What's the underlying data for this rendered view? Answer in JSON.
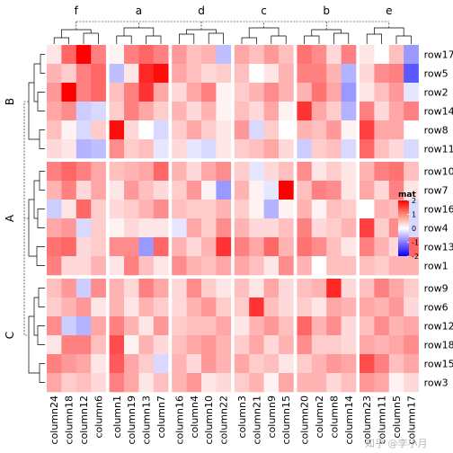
{
  "chart_data": {
    "type": "heatmap",
    "row_slices": [
      "B",
      "A",
      "C"
    ],
    "row_slice_rows": [
      [
        "row17",
        "row5",
        "row2",
        "row14",
        "row8",
        "row11"
      ],
      [
        "row10",
        "row7",
        "row16",
        "row4",
        "row13",
        "row1"
      ],
      [
        "row9",
        "row6",
        "row12",
        "row18",
        "row15",
        "row3"
      ]
    ],
    "column_slices": [
      "f",
      "a",
      "d",
      "c",
      "b",
      "e"
    ],
    "column_slice_columns": [
      [
        "column24",
        "column18",
        "column12",
        "column6"
      ],
      [
        "column1",
        "column19",
        "column13",
        "column7"
      ],
      [
        "column16",
        "column4",
        "column10",
        "column22"
      ],
      [
        "column3",
        "column21",
        "column9",
        "column15"
      ],
      [
        "column20",
        "column2",
        "column8",
        "column14"
      ],
      [
        "column23",
        "column11",
        "column5",
        "column17"
      ]
    ],
    "values": [
      [
        0.2,
        1.2,
        2.0,
        1.0,
        0.1,
        1.0,
        1.2,
        1.0,
        0.8,
        0.5,
        0.6,
        -0.5,
        0.7,
        0.5,
        0.8,
        0.5,
        1.1,
        0.9,
        0.3,
        1.0,
        0.2,
        0.0,
        0.5,
        -0.8
      ],
      [
        0.6,
        0.4,
        1.0,
        1.2,
        -0.5,
        0.2,
        1.7,
        1.9,
        0.7,
        0.5,
        0.3,
        0.4,
        0.5,
        0.0,
        0.2,
        0.6,
        1.0,
        1.0,
        0.6,
        -0.6,
        0.3,
        0.9,
        1.0,
        -1.3
      ],
      [
        0.8,
        2.1,
        1.0,
        1.2,
        0.5,
        1.0,
        1.6,
        0.7,
        0.3,
        0.7,
        1.0,
        0.1,
        0.4,
        0.6,
        0.9,
        0.6,
        0.6,
        1.1,
        0.7,
        -0.8,
        0.2,
        0.5,
        0.8,
        -0.2
      ],
      [
        0.7,
        0.9,
        -0.4,
        -0.3,
        0.4,
        1.0,
        0.7,
        0.4,
        0.6,
        0.3,
        0.6,
        0.1,
        0.5,
        0.3,
        0.7,
        0.1,
        1.6,
        0.7,
        0.4,
        -0.6,
        1.0,
        0.3,
        0.7,
        1.0
      ],
      [
        0.5,
        0.1,
        -0.3,
        0.4,
        1.9,
        0.3,
        0.0,
        -0.3,
        0.4,
        0.7,
        0.4,
        0.2,
        0.8,
        -0.3,
        0.4,
        0.0,
        0.6,
        0.5,
        0.8,
        0.1,
        1.5,
        0.7,
        0.7,
        0.0
      ],
      [
        0.3,
        0.2,
        -0.6,
        -0.5,
        0.9,
        0.4,
        0.5,
        -0.2,
        0.3,
        -0.2,
        -0.3,
        0.2,
        0.4,
        0.5,
        0.7,
        0.3,
        -0.4,
        0.4,
        0.5,
        -0.3,
        1.2,
        0.5,
        0.3,
        -0.3
      ],
      [
        1.0,
        1.2,
        1.0,
        0.7,
        0.5,
        0.6,
        0.7,
        1.2,
        0.6,
        0.3,
        0.7,
        0.9,
        0.4,
        -0.2,
        0.3,
        0.5,
        0.9,
        0.2,
        0.4,
        0.2,
        0.6,
        1.0,
        1.1,
        0.5
      ],
      [
        0.6,
        1.0,
        0.3,
        0.7,
        0.2,
        0.8,
        0.5,
        0.3,
        0.4,
        0.8,
        0.1,
        -0.8,
        0.6,
        0.1,
        -0.2,
        2.3,
        0.5,
        1.0,
        0.9,
        0.2,
        0.7,
        0.3,
        1.0,
        0.2
      ],
      [
        -0.4,
        0.2,
        1.2,
        0.4,
        0.3,
        0.4,
        0.6,
        0.9,
        0.5,
        0.4,
        0.4,
        0.6,
        0.4,
        0.1,
        -0.6,
        0.1,
        0.6,
        0.1,
        0.5,
        0.4,
        0.0,
        0.6,
        0.5,
        -0.3
      ],
      [
        0.7,
        0.8,
        -0.3,
        0.4,
        0.1,
        0.3,
        0.2,
        0.2,
        -0.2,
        0.7,
        0.4,
        0.9,
        0.6,
        0.3,
        0.3,
        0.5,
        1.0,
        0.3,
        0.4,
        0.6,
        1.5,
        0.4,
        0.9,
        -0.3
      ],
      [
        1.1,
        1.2,
        0.3,
        0.4,
        0.9,
        0.9,
        -0.8,
        1.2,
        0.6,
        0.3,
        0.6,
        1.6,
        1.0,
        0.7,
        1.2,
        0.6,
        1.1,
        0.9,
        0.5,
        0.2,
        1.0,
        0.6,
        0.3,
        1.2
      ],
      [
        1.0,
        0.3,
        0.3,
        0.6,
        0.2,
        1.0,
        0.5,
        0.2,
        0.9,
        0.6,
        0.5,
        0.7,
        0.7,
        0.5,
        0.2,
        0.9,
        0.6,
        0.0,
        0.5,
        0.5,
        0.5,
        0.4,
        0.6,
        0.6
      ],
      [
        0.5,
        0.8,
        -0.4,
        0.9,
        0.6,
        0.3,
        1.0,
        0.7,
        0.3,
        0.9,
        0.4,
        0.2,
        0.5,
        0.2,
        0.7,
        0.3,
        0.5,
        0.6,
        1.7,
        0.3,
        0.5,
        1.0,
        0.7,
        0.4
      ],
      [
        0.4,
        0.6,
        0.8,
        0.2,
        0.6,
        0.2,
        0.6,
        0.4,
        0.3,
        0.6,
        0.8,
        0.4,
        0.4,
        1.6,
        0.5,
        0.3,
        0.4,
        0.2,
        0.7,
        0.6,
        0.7,
        0.6,
        0.8,
        0.3
      ],
      [
        0.9,
        -0.4,
        -0.6,
        0.7,
        1.0,
        0.6,
        0.2,
        0.8,
        0.4,
        0.5,
        0.5,
        0.7,
        0.2,
        0.6,
        0.8,
        0.5,
        1.2,
        0.6,
        0.9,
        0.3,
        0.5,
        0.9,
        0.6,
        0.7
      ],
      [
        0.2,
        1.0,
        1.0,
        0.5,
        1.4,
        0.1,
        0.6,
        0.3,
        0.5,
        0.7,
        0.8,
        0.6,
        0.4,
        0.7,
        0.3,
        0.6,
        0.9,
        0.4,
        0.4,
        0.3,
        0.7,
        0.6,
        0.7,
        0.9
      ],
      [
        1.0,
        0.8,
        0.7,
        0.2,
        1.3,
        0.7,
        0.4,
        -0.3,
        0.6,
        0.3,
        0.8,
        0.6,
        0.7,
        0.4,
        0.5,
        0.2,
        0.4,
        0.6,
        0.8,
        0.7,
        1.4,
        1.0,
        0.5,
        0.7
      ],
      [
        0.7,
        0.4,
        0.5,
        0.3,
        1.0,
        0.7,
        0.2,
        0.5,
        0.6,
        0.8,
        0.2,
        0.3,
        0.4,
        0.6,
        0.1,
        0.7,
        0.6,
        0.6,
        0.3,
        0.5,
        0.8,
        0.7,
        0.1,
        0.3
      ]
    ],
    "legend": {
      "title": "mat",
      "ticks": [
        2,
        1,
        0,
        -1,
        -2
      ],
      "colors": {
        "high": "#ff0000",
        "mid": "#ffffff",
        "low": "#0000ff"
      }
    },
    "watermark": "知乎 @李小月"
  }
}
